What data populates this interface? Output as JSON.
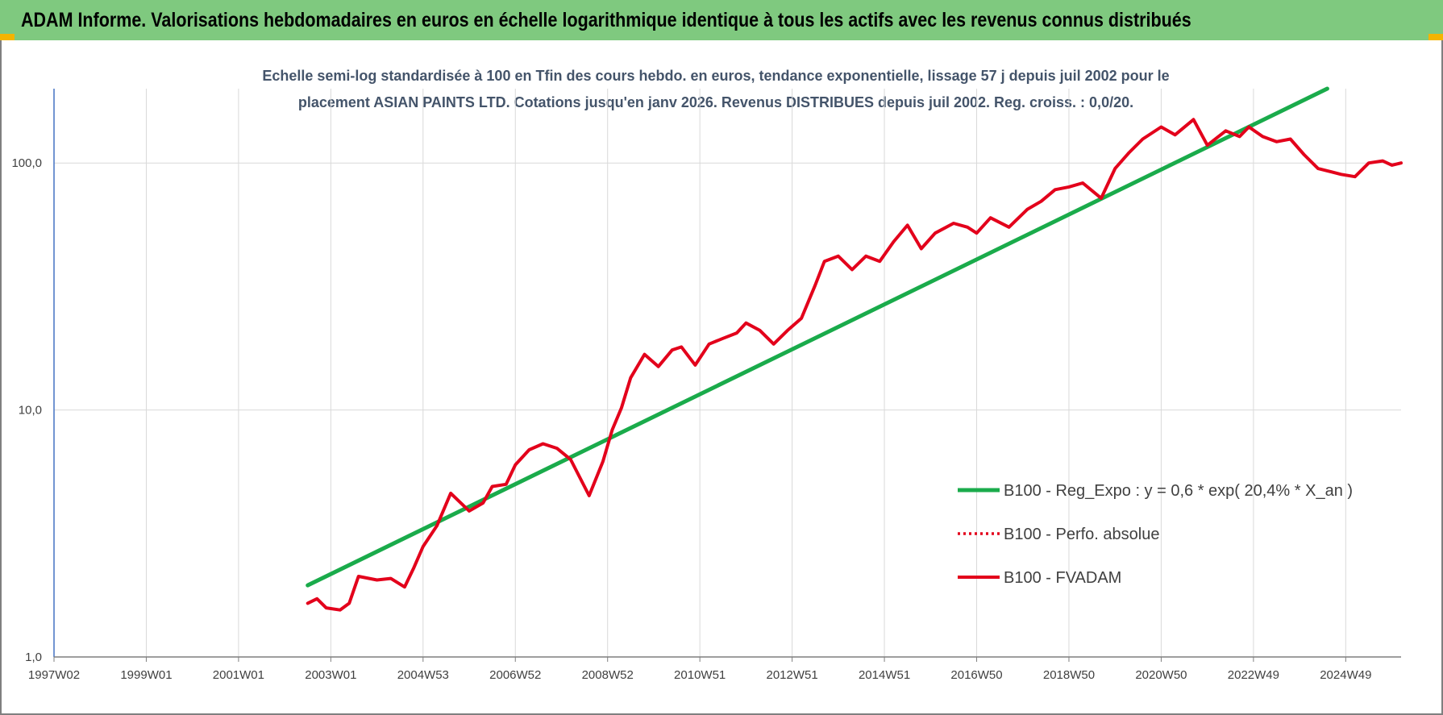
{
  "banner": {
    "title": "ADAM Informe. Valorisations hebdomadaires en euros en échelle logarithmique identique à tous les actifs avec les revenus connus distribués"
  },
  "colors": {
    "banner_bg": "#7fc97f",
    "corner_accent": "#f4b400",
    "trend_line": "#1aab4b",
    "perf_line": "#e3001b",
    "fvadam_line": "#e3001b",
    "title_text": "#44546a",
    "axis_text": "#404040",
    "gridline": "#d9d9d9"
  },
  "chart_data": {
    "type": "line",
    "title_line1": "Echelle semi-log standardisée à 100 en Tfin des cours hebdo. en euros, tendance exponentielle, lissage 57 j depuis juil 2002 pour le",
    "title_line2": "placement ASIAN PAINTS LTD. Cotations jusqu'en janv 2026. Revenus DISTRIBUES depuis juil 2002. Reg. croiss. : 0,0/20.",
    "y_scale": "log",
    "ylim": [
      1,
      200
    ],
    "y_ticks": [
      {
        "value": 1,
        "label": "1,0"
      },
      {
        "value": 10,
        "label": "10,0"
      },
      {
        "value": 100,
        "label": "100,0"
      }
    ],
    "xlim": [
      1997.0,
      2026.2
    ],
    "x_ticks": [
      {
        "value": 1997.0,
        "label": "1997W02"
      },
      {
        "value": 1999.0,
        "label": "1999W01"
      },
      {
        "value": 2001.0,
        "label": "2001W01"
      },
      {
        "value": 2003.0,
        "label": "2003W01"
      },
      {
        "value": 2005.0,
        "label": "2004W53"
      },
      {
        "value": 2007.0,
        "label": "2006W52"
      },
      {
        "value": 2009.0,
        "label": "2008W52"
      },
      {
        "value": 2011.0,
        "label": "2010W51"
      },
      {
        "value": 2013.0,
        "label": "2012W51"
      },
      {
        "value": 2015.0,
        "label": "2014W51"
      },
      {
        "value": 2017.0,
        "label": "2016W50"
      },
      {
        "value": 2019.0,
        "label": "2018W50"
      },
      {
        "value": 2021.0,
        "label": "2020W50"
      },
      {
        "value": 2023.0,
        "label": "2022W49"
      },
      {
        "value": 2025.0,
        "label": "2024W49"
      }
    ],
    "grid": true,
    "legend_position": "bottom-right",
    "series": [
      {
        "name": "B100 - Reg_Expo : y = 0,6 * exp( 20,4% *  X_an )",
        "style": "solid-green",
        "x": [
          2002.5,
          2024.6
        ],
        "y": [
          1.95,
          200
        ]
      },
      {
        "name": "B100 - Perfo. absolue",
        "style": "dotted-red",
        "x": [],
        "y": []
      },
      {
        "name": "B100 - FVADAM",
        "style": "solid-red",
        "x": [
          2002.5,
          2002.7,
          2002.9,
          2003.2,
          2003.4,
          2003.6,
          2004.0,
          2004.3,
          2004.6,
          2004.8,
          2005.0,
          2005.3,
          2005.6,
          2006.0,
          2006.3,
          2006.5,
          2006.8,
          2007.0,
          2007.3,
          2007.6,
          2007.9,
          2008.2,
          2008.6,
          2008.9,
          2009.1,
          2009.3,
          2009.5,
          2009.8,
          2010.1,
          2010.4,
          2010.6,
          2010.9,
          2011.2,
          2011.5,
          2011.8,
          2012.0,
          2012.3,
          2012.6,
          2012.9,
          2013.2,
          2013.5,
          2013.7,
          2014.0,
          2014.3,
          2014.6,
          2014.9,
          2015.2,
          2015.5,
          2015.8,
          2016.1,
          2016.5,
          2016.8,
          2017.0,
          2017.3,
          2017.7,
          2018.1,
          2018.4,
          2018.7,
          2019.0,
          2019.3,
          2019.7,
          2020.0,
          2020.3,
          2020.6,
          2021.0,
          2021.3,
          2021.7,
          2022.0,
          2022.4,
          2022.7,
          2022.9,
          2023.2,
          2023.5,
          2023.8,
          2024.1,
          2024.4,
          2024.6,
          2024.9,
          2025.2,
          2025.5,
          2025.8,
          2026.0,
          2026.2
        ],
        "y": [
          1.65,
          1.72,
          1.58,
          1.55,
          1.65,
          2.12,
          2.05,
          2.08,
          1.92,
          2.3,
          2.8,
          3.4,
          4.6,
          3.9,
          4.2,
          4.9,
          5.0,
          6.0,
          6.9,
          7.3,
          7.0,
          6.3,
          4.5,
          6.2,
          8.3,
          10.2,
          13.5,
          16.8,
          15.0,
          17.5,
          18.0,
          15.2,
          18.5,
          19.5,
          20.5,
          22.5,
          21.0,
          18.5,
          21.0,
          23.5,
          32.0,
          40.0,
          42.0,
          37.0,
          42.0,
          40.0,
          48.0,
          56.0,
          45.0,
          52.0,
          57.0,
          55.0,
          52.0,
          60.0,
          55.0,
          65.0,
          70.0,
          78.0,
          80.0,
          83.0,
          72.0,
          95.0,
          110.0,
          125.0,
          140.0,
          130.0,
          150.0,
          118.0,
          135.0,
          128.0,
          140.0,
          128.0,
          122.0,
          125.0,
          108.0,
          95.0,
          93.0,
          90.0,
          88.0,
          100.0,
          102.0,
          98.0,
          100.0
        ]
      }
    ]
  }
}
